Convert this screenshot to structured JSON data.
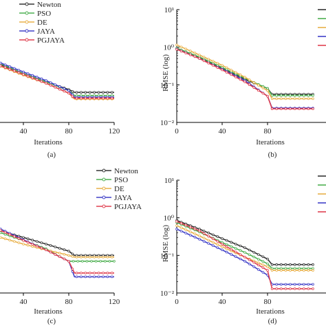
{
  "colors": {
    "Newton": "#333333",
    "PSO": "#4caf50",
    "DE": "#e8b048",
    "JAYA": "#4040c8",
    "PGJAYA": "#e04050"
  },
  "chart_data": [
    {
      "panel": "a",
      "type": "line",
      "caption": "(a)",
      "xlabel": "Iterations",
      "ylabel": "",
      "xlim": [
        20,
        120
      ],
      "ylim_log": [
        0.01,
        10
      ],
      "xticks": [
        40,
        80,
        120
      ],
      "yticks": [],
      "legend": "top-right",
      "legend_entries": [
        "Newton",
        "PSO",
        "DE",
        "JAYA",
        "PGJAYA"
      ],
      "series": [
        {
          "name": "Newton",
          "x": [
            20,
            40,
            60,
            80,
            85,
            120
          ],
          "y": [
            0.34,
            0.2,
            0.12,
            0.075,
            0.063,
            0.063
          ]
        },
        {
          "name": "PSO",
          "x": [
            20,
            40,
            60,
            80,
            85,
            120
          ],
          "y": [
            0.36,
            0.2,
            0.12,
            0.07,
            0.052,
            0.052
          ]
        },
        {
          "name": "DE",
          "x": [
            20,
            40,
            60,
            80,
            85,
            120
          ],
          "y": [
            0.31,
            0.18,
            0.11,
            0.06,
            0.042,
            0.042
          ]
        },
        {
          "name": "JAYA",
          "x": [
            20,
            40,
            60,
            80,
            85,
            120
          ],
          "y": [
            0.38,
            0.22,
            0.13,
            0.07,
            0.047,
            0.047
          ]
        },
        {
          "name": "PGJAYA",
          "x": [
            20,
            40,
            60,
            80,
            85,
            120
          ],
          "y": [
            0.32,
            0.19,
            0.11,
            0.06,
            0.044,
            0.044
          ]
        }
      ]
    },
    {
      "panel": "b",
      "type": "line",
      "caption": "(b)",
      "xlabel": "Iterations",
      "ylabel": "RMSE (log)",
      "xlim": [
        0,
        120
      ],
      "ylim_log": [
        0.01,
        10
      ],
      "xticks": [
        0,
        40,
        80
      ],
      "yticks": [
        "10¹",
        "10⁰",
        "10⁻¹",
        "10⁻²"
      ],
      "series": [
        {
          "name": "Newton",
          "x": [
            0,
            20,
            40,
            60,
            80,
            84,
            120
          ],
          "y": [
            0.92,
            0.52,
            0.28,
            0.14,
            0.08,
            0.056,
            0.056
          ]
        },
        {
          "name": "PSO",
          "x": [
            0,
            20,
            40,
            60,
            80,
            84,
            120
          ],
          "y": [
            0.95,
            0.55,
            0.29,
            0.15,
            0.08,
            0.052,
            0.052
          ]
        },
        {
          "name": "DE",
          "x": [
            0,
            20,
            40,
            60,
            80,
            84,
            120
          ],
          "y": [
            1.15,
            0.62,
            0.33,
            0.16,
            0.07,
            0.043,
            0.043
          ]
        },
        {
          "name": "JAYA",
          "x": [
            0,
            20,
            40,
            60,
            80,
            84,
            120
          ],
          "y": [
            0.9,
            0.5,
            0.26,
            0.13,
            0.05,
            0.024,
            0.024
          ]
        },
        {
          "name": "PGJAYA",
          "x": [
            0,
            20,
            40,
            60,
            80,
            84,
            120
          ],
          "y": [
            0.88,
            0.5,
            0.25,
            0.12,
            0.05,
            0.023,
            0.023
          ]
        }
      ]
    },
    {
      "panel": "c",
      "type": "line",
      "caption": "(c)",
      "xlabel": "Iterations",
      "ylabel": "",
      "xlim": [
        20,
        120
      ],
      "ylim_log": [
        0.01,
        10
      ],
      "xticks": [
        40,
        80,
        120
      ],
      "yticks": [],
      "legend": "top-right",
      "legend_entries": [
        "Newton",
        "PSO",
        "DE",
        "JAYA",
        "PGJAYA"
      ],
      "series": [
        {
          "name": "Newton",
          "x": [
            20,
            40,
            60,
            80,
            85,
            120
          ],
          "y": [
            0.45,
            0.3,
            0.2,
            0.13,
            0.1,
            0.1
          ]
        },
        {
          "name": "PSO",
          "x": [
            20,
            40,
            60,
            70,
            80,
            120
          ],
          "y": [
            0.4,
            0.25,
            0.15,
            0.1,
            0.07,
            0.07
          ]
        },
        {
          "name": "DE",
          "x": [
            20,
            40,
            60,
            80,
            85,
            120
          ],
          "y": [
            0.3,
            0.2,
            0.14,
            0.1,
            0.09,
            0.09
          ]
        },
        {
          "name": "JAYA",
          "x": [
            20,
            40,
            60,
            80,
            85,
            120
          ],
          "y": [
            0.5,
            0.26,
            0.14,
            0.07,
            0.027,
            0.027
          ]
        },
        {
          "name": "PGJAYA",
          "x": [
            20,
            40,
            60,
            80,
            85,
            120
          ],
          "y": [
            0.46,
            0.25,
            0.14,
            0.07,
            0.034,
            0.034
          ]
        }
      ]
    },
    {
      "panel": "d",
      "type": "line",
      "caption": "(d)",
      "xlabel": "Iterations",
      "ylabel": "RMSE (log)",
      "xlim": [
        0,
        120
      ],
      "ylim_log": [
        0.01,
        10
      ],
      "xticks": [
        0,
        40,
        80
      ],
      "yticks": [
        "10¹",
        "10⁰",
        "10⁻¹",
        "10⁻²"
      ],
      "series": [
        {
          "name": "Newton",
          "x": [
            0,
            20,
            40,
            60,
            80,
            84,
            120
          ],
          "y": [
            0.85,
            0.5,
            0.28,
            0.16,
            0.08,
            0.057,
            0.057
          ]
        },
        {
          "name": "PSO",
          "x": [
            0,
            20,
            40,
            60,
            80,
            84,
            120
          ],
          "y": [
            0.75,
            0.42,
            0.22,
            0.12,
            0.06,
            0.045,
            0.045
          ]
        },
        {
          "name": "DE",
          "x": [
            0,
            20,
            40,
            60,
            80,
            84,
            120
          ],
          "y": [
            0.62,
            0.33,
            0.17,
            0.09,
            0.05,
            0.04,
            0.04
          ]
        },
        {
          "name": "JAYA",
          "x": [
            0,
            20,
            40,
            60,
            80,
            84,
            120
          ],
          "y": [
            0.5,
            0.27,
            0.14,
            0.07,
            0.03,
            0.017,
            0.017
          ]
        },
        {
          "name": "PGJAYA",
          "x": [
            0,
            20,
            40,
            60,
            80,
            84,
            120
          ],
          "y": [
            0.8,
            0.45,
            0.2,
            0.09,
            0.04,
            0.013,
            0.013
          ]
        }
      ]
    }
  ]
}
